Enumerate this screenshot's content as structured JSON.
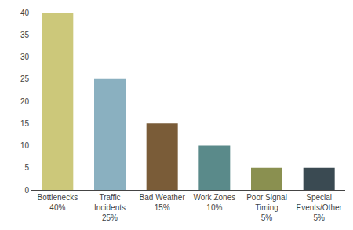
{
  "chart_data": {
    "type": "bar",
    "categories": [
      "Bottlenecks\n40%",
      "Traffic\nIncidents\n25%",
      "Bad Weather\n15%",
      "Work Zones\n10%",
      "Poor Signal\nTiming\n5%",
      "Special\nEvents/Other\n5%"
    ],
    "values": [
      40,
      25,
      15,
      10,
      5,
      5
    ],
    "colors": [
      "#ccc87a",
      "#8ab0c0",
      "#7a5c38",
      "#5a8a8a",
      "#8a9050",
      "#3a4a52"
    ],
    "ylim": [
      0,
      40
    ],
    "yticks": [
      0,
      5,
      10,
      15,
      20,
      25,
      30,
      35,
      40
    ],
    "grid": false
  }
}
